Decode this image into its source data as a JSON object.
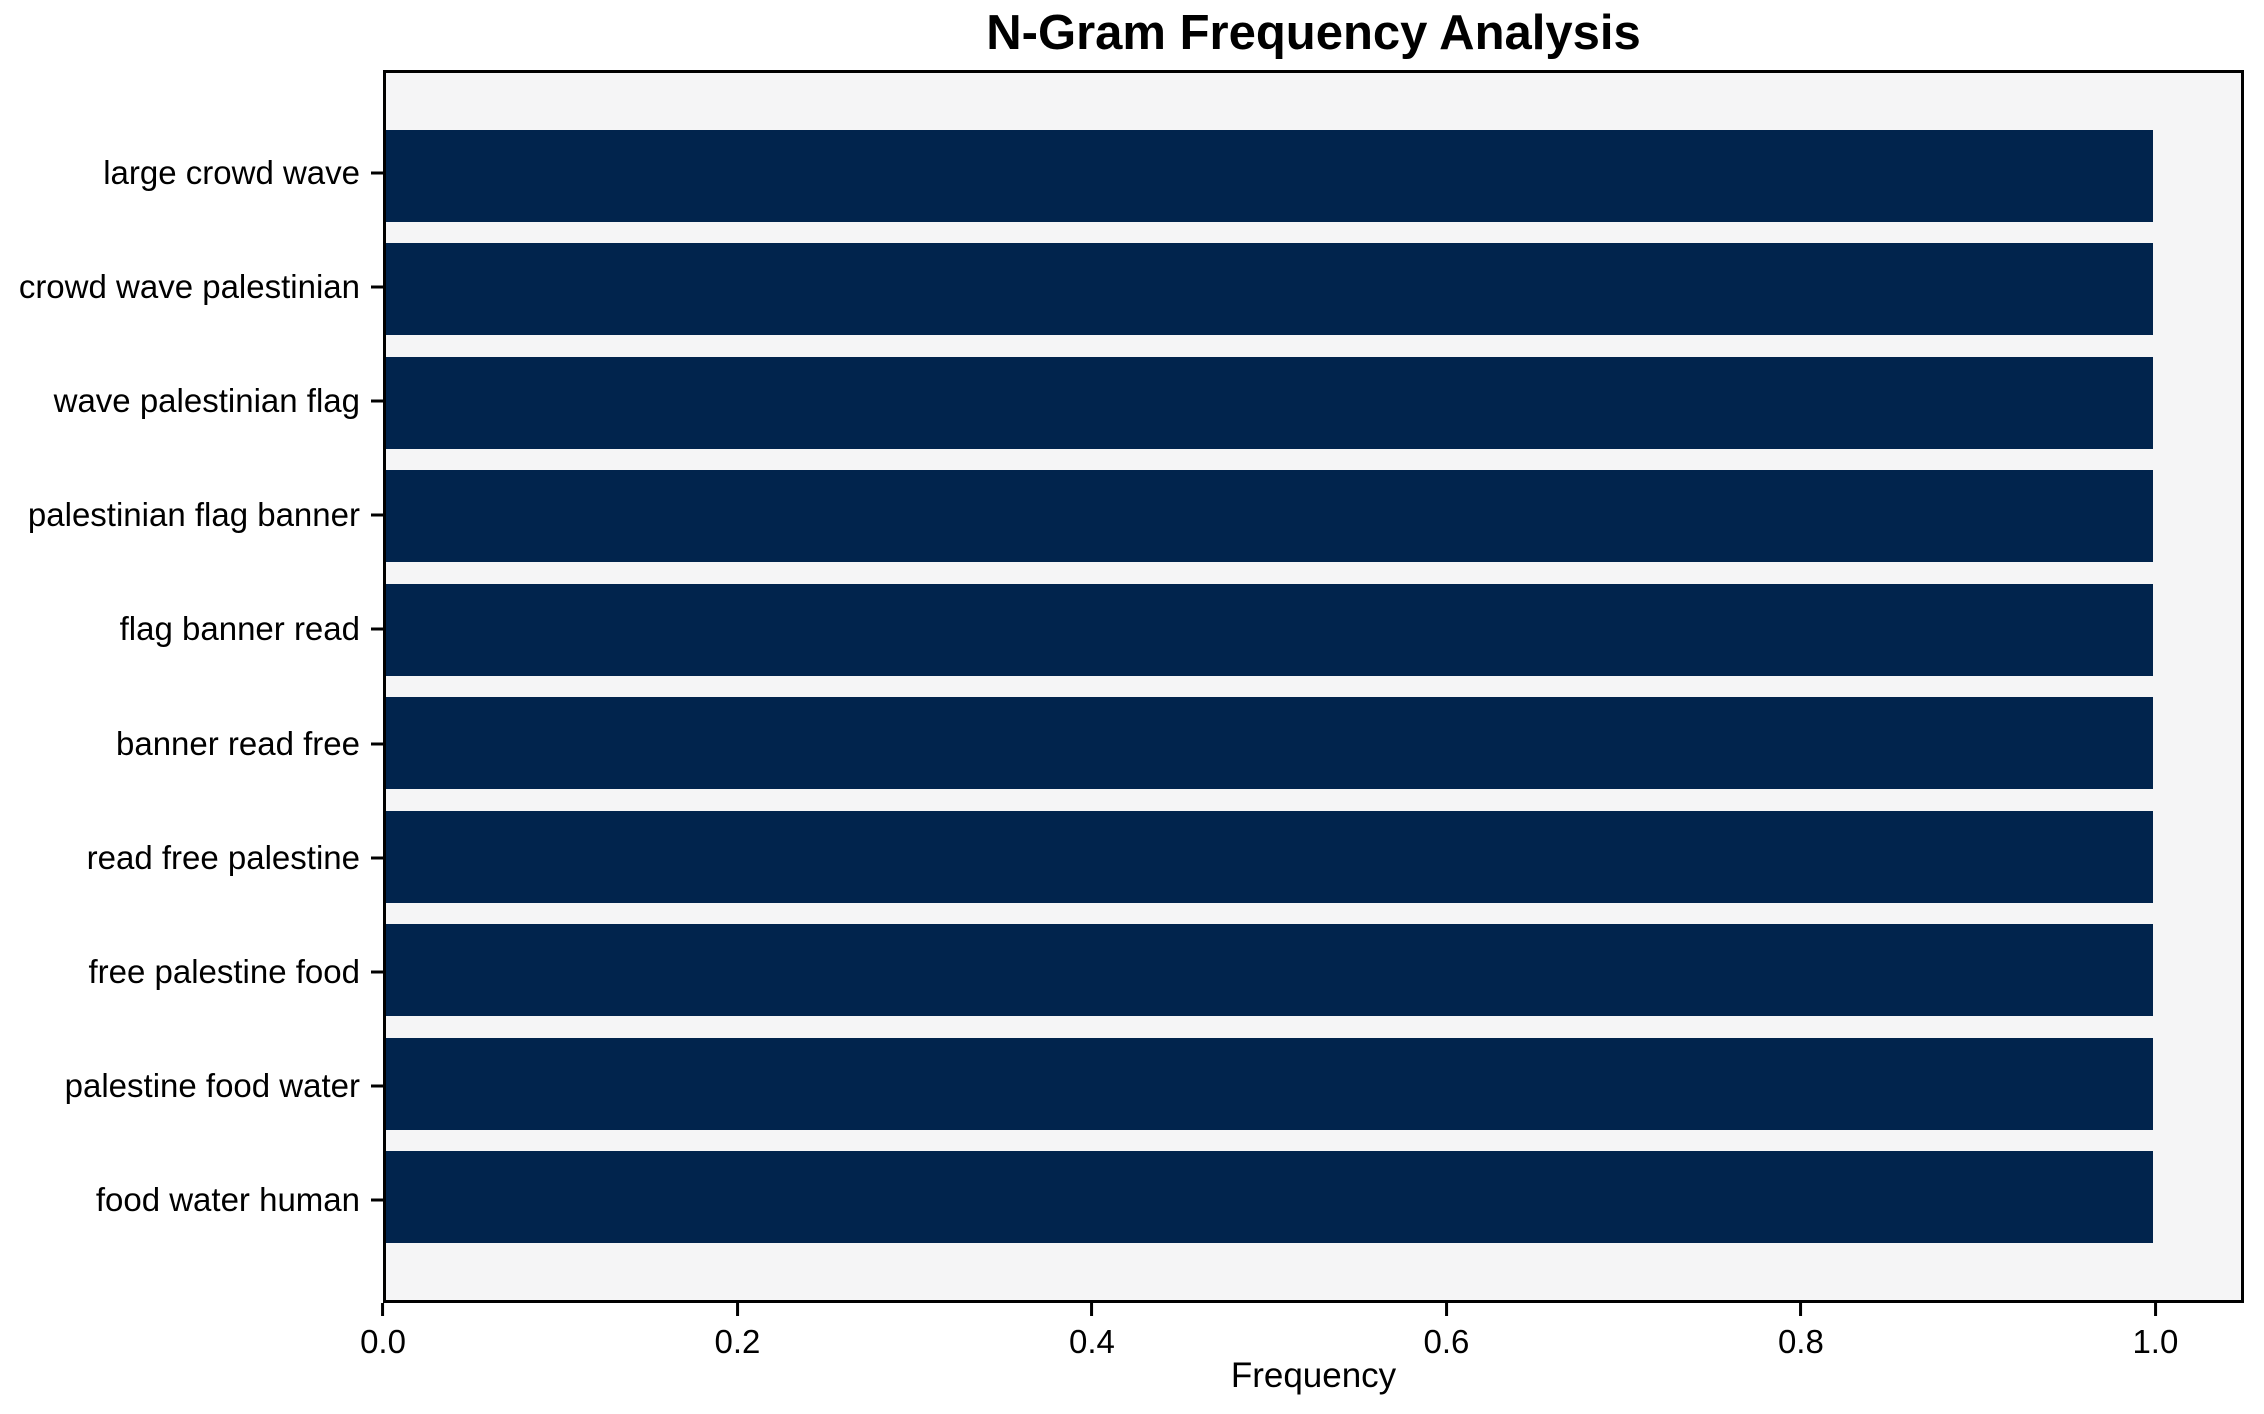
{
  "chart_data": {
    "type": "bar",
    "orientation": "horizontal",
    "title": "N-Gram Frequency Analysis",
    "xlabel": "Frequency",
    "ylabel": "",
    "categories": [
      "large crowd wave",
      "crowd wave palestinian",
      "wave palestinian flag",
      "palestinian flag banner",
      "flag banner read",
      "banner read free",
      "read free palestine",
      "free palestine food",
      "palestine food water",
      "food water human"
    ],
    "values": [
      1.0,
      1.0,
      1.0,
      1.0,
      1.0,
      1.0,
      1.0,
      1.0,
      1.0,
      1.0
    ],
    "xticks": [
      0.0,
      0.2,
      0.4,
      0.6,
      0.8,
      1.0
    ],
    "xtick_labels": [
      "0.0",
      "0.2",
      "0.4",
      "0.6",
      "0.8",
      "1.0"
    ],
    "xlim": [
      0,
      1.05
    ],
    "grid": false,
    "legend": null,
    "bar_height_fraction": 0.81,
    "colors": {
      "bar": "#01244d",
      "plot_bg": "#f5f5f6",
      "figure_bg": "#ffffff",
      "text": "#000000",
      "spine": "#000000"
    }
  }
}
